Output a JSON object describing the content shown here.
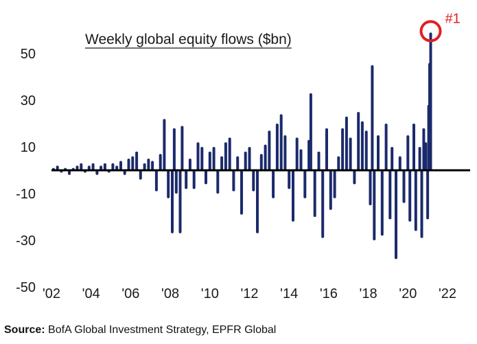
{
  "chart_data": {
    "type": "bar",
    "title": "Weekly global equity flows ($bn)",
    "xlabel": "",
    "ylabel": "",
    "ylim": [
      -50,
      60
    ],
    "xlim": [
      2002,
      2023
    ],
    "yticks": [
      50,
      30,
      10,
      -10,
      -30,
      -50
    ],
    "ytick_labels": [
      "50",
      "30",
      "10",
      "-10",
      "-30",
      "-50"
    ],
    "xticks": [
      2002,
      2004,
      2006,
      2008,
      2010,
      2012,
      2014,
      2016,
      2018,
      2020,
      2022
    ],
    "xtick_labels": [
      "'02",
      "'04",
      "'06",
      "'08",
      "'10",
      "'12",
      "'14",
      "'16",
      "'18",
      "'20",
      "'22"
    ],
    "grid": false,
    "legend": "none",
    "zero_line": true,
    "bar_color": "#1b2a6b",
    "highlight_color": "#e02020",
    "annotation": {
      "label": "#1",
      "x": 2021.15,
      "y": 59
    },
    "series": [
      {
        "values": [
          [
            2002.1,
            1
          ],
          [
            2002.3,
            2
          ],
          [
            2002.5,
            -1
          ],
          [
            2002.7,
            1
          ],
          [
            2002.9,
            -2
          ],
          [
            2003.1,
            1
          ],
          [
            2003.3,
            2
          ],
          [
            2003.5,
            3
          ],
          [
            2003.7,
            -1
          ],
          [
            2003.9,
            2
          ],
          [
            2004.1,
            3
          ],
          [
            2004.3,
            -2
          ],
          [
            2004.5,
            2
          ],
          [
            2004.7,
            3
          ],
          [
            2004.9,
            -1
          ],
          [
            2005.1,
            3
          ],
          [
            2005.3,
            2
          ],
          [
            2005.5,
            4
          ],
          [
            2005.7,
            -2
          ],
          [
            2005.9,
            5
          ],
          [
            2006.1,
            6
          ],
          [
            2006.3,
            8
          ],
          [
            2006.5,
            -4
          ],
          [
            2006.7,
            3
          ],
          [
            2006.9,
            5
          ],
          [
            2007.1,
            4
          ],
          [
            2007.3,
            -9
          ],
          [
            2007.5,
            7
          ],
          [
            2007.7,
            22
          ],
          [
            2007.9,
            -12
          ],
          [
            2008.1,
            -27
          ],
          [
            2008.2,
            18
          ],
          [
            2008.3,
            -10
          ],
          [
            2008.5,
            -27
          ],
          [
            2008.6,
            19
          ],
          [
            2008.8,
            -8
          ],
          [
            2009.0,
            5
          ],
          [
            2009.2,
            -8
          ],
          [
            2009.4,
            12
          ],
          [
            2009.6,
            10
          ],
          [
            2009.8,
            -6
          ],
          [
            2010.0,
            8
          ],
          [
            2010.2,
            10
          ],
          [
            2010.4,
            -10
          ],
          [
            2010.6,
            6
          ],
          [
            2010.8,
            12
          ],
          [
            2011.0,
            14
          ],
          [
            2011.2,
            -9
          ],
          [
            2011.4,
            6
          ],
          [
            2011.6,
            -19
          ],
          [
            2011.8,
            8
          ],
          [
            2012.0,
            10
          ],
          [
            2012.2,
            -9
          ],
          [
            2012.4,
            -27
          ],
          [
            2012.6,
            7
          ],
          [
            2012.8,
            11
          ],
          [
            2013.0,
            17
          ],
          [
            2013.2,
            -12
          ],
          [
            2013.4,
            20
          ],
          [
            2013.6,
            24
          ],
          [
            2013.8,
            15
          ],
          [
            2014.0,
            -8
          ],
          [
            2014.2,
            -22
          ],
          [
            2014.4,
            14
          ],
          [
            2014.6,
            9
          ],
          [
            2014.8,
            -12
          ],
          [
            2015.0,
            13
          ],
          [
            2015.1,
            33
          ],
          [
            2015.3,
            -20
          ],
          [
            2015.5,
            8
          ],
          [
            2015.7,
            -29
          ],
          [
            2015.9,
            18
          ],
          [
            2016.1,
            -17
          ],
          [
            2016.3,
            -12
          ],
          [
            2016.5,
            6
          ],
          [
            2016.7,
            18
          ],
          [
            2016.9,
            23
          ],
          [
            2017.1,
            14
          ],
          [
            2017.3,
            -6
          ],
          [
            2017.5,
            25
          ],
          [
            2017.7,
            21
          ],
          [
            2017.9,
            17
          ],
          [
            2018.1,
            -15
          ],
          [
            2018.2,
            45
          ],
          [
            2018.3,
            -30
          ],
          [
            2018.5,
            15
          ],
          [
            2018.7,
            -28
          ],
          [
            2018.9,
            20
          ],
          [
            2019.1,
            -21
          ],
          [
            2019.2,
            10
          ],
          [
            2019.4,
            -38
          ],
          [
            2019.6,
            6
          ],
          [
            2019.8,
            -14
          ],
          [
            2020.0,
            15
          ],
          [
            2020.1,
            -22
          ],
          [
            2020.3,
            20
          ],
          [
            2020.4,
            -26
          ],
          [
            2020.6,
            10
          ],
          [
            2020.7,
            -29
          ],
          [
            2020.8,
            18
          ],
          [
            2020.9,
            12
          ],
          [
            2021.0,
            -21
          ],
          [
            2021.05,
            28
          ],
          [
            2021.1,
            46
          ],
          [
            2021.15,
            59
          ]
        ]
      }
    ]
  },
  "source": {
    "label": "Source:",
    "text": " BofA Global Investment Strategy, EPFR Global"
  }
}
